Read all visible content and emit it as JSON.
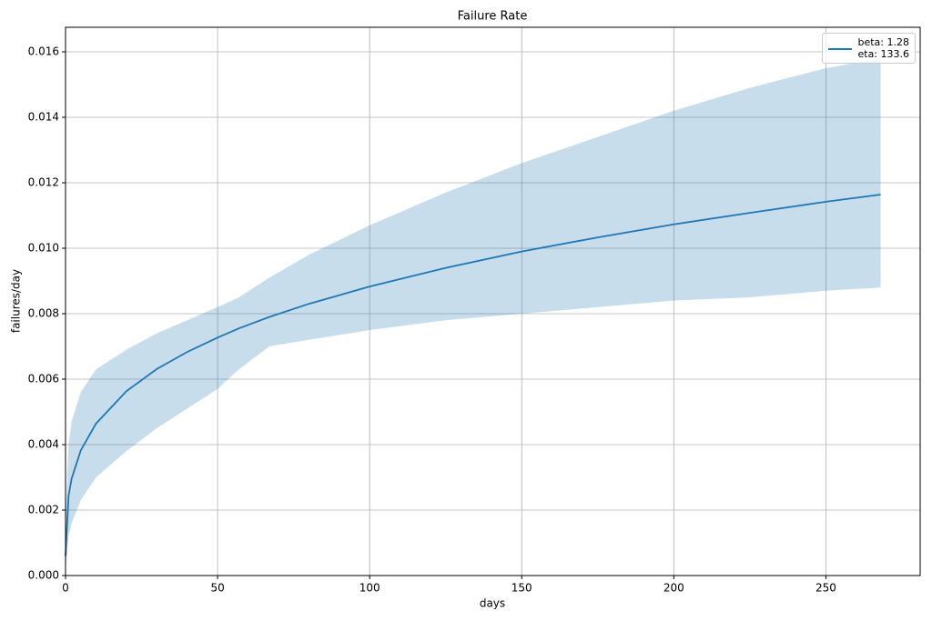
{
  "chart_data": {
    "type": "line",
    "title": "Failure Rate",
    "xlabel": "days",
    "ylabel": "failures/day",
    "x": [
      0,
      1,
      2,
      5,
      10,
      20,
      30,
      40,
      50,
      57,
      67,
      80,
      100,
      125,
      150,
      175,
      200,
      225,
      250,
      268
    ],
    "series": [
      {
        "name": "beta: 1.28\neta: 133.6",
        "color": "#1f77b4",
        "values": [
          0.0006,
          0.00243,
          0.00296,
          0.00382,
          0.00464,
          0.00563,
          0.00631,
          0.00683,
          0.00727,
          0.00755,
          0.0079,
          0.0083,
          0.00883,
          0.0094,
          0.0099,
          0.01033,
          0.01073,
          0.01108,
          0.01142,
          0.01164
        ],
        "upper": [
          0.0018,
          0.004,
          0.0047,
          0.0056,
          0.0063,
          0.0069,
          0.0074,
          0.0078,
          0.0082,
          0.0085,
          0.0091,
          0.0098,
          0.0107,
          0.0117,
          0.0126,
          0.0134,
          0.0142,
          0.0149,
          0.0155,
          0.0158
        ],
        "lower": [
          0.0002,
          0.0012,
          0.0016,
          0.0023,
          0.003,
          0.0038,
          0.0045,
          0.0051,
          0.0057,
          0.0063,
          0.007,
          0.0072,
          0.0075,
          0.0078,
          0.008,
          0.0082,
          0.0084,
          0.0085,
          0.0087,
          0.0088
        ]
      }
    ],
    "xlim": [
      0,
      281
    ],
    "ylim": [
      0,
      0.01675
    ],
    "xticks": [
      0,
      50,
      100,
      150,
      200,
      250
    ],
    "yticks": [
      {
        "value": 0,
        "label": "0.000"
      },
      {
        "value": 0.002,
        "label": "0.002"
      },
      {
        "value": 0.004,
        "label": "0.004"
      },
      {
        "value": 0.006,
        "label": "0.006"
      },
      {
        "value": 0.008,
        "label": "0.008"
      },
      {
        "value": 0.01,
        "label": "0.010"
      },
      {
        "value": 0.012,
        "label": "0.012"
      },
      {
        "value": 0.014,
        "label": "0.014"
      },
      {
        "value": 0.016,
        "label": "0.016"
      }
    ],
    "grid": true,
    "legend": "upper right"
  }
}
